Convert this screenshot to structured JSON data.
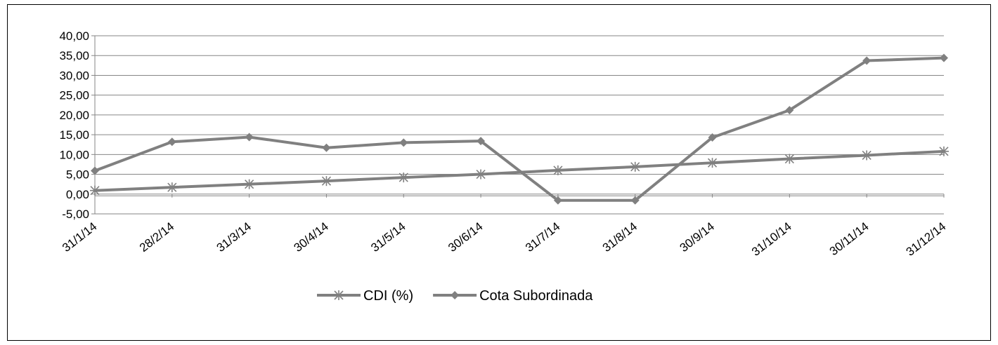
{
  "chart_data": {
    "type": "line",
    "categories": [
      "31/1/14",
      "28/2/14",
      "31/3/14",
      "30/4/14",
      "31/5/14",
      "30/6/14",
      "31/7/14",
      "31/8/14",
      "30/9/14",
      "31/10/14",
      "30/11/14",
      "31/12/14"
    ],
    "y_tick_labels": [
      "40,00",
      "35,00",
      "30,00",
      "25,00",
      "20,00",
      "15,00",
      "10,00",
      "5,00",
      "0,00",
      "-5,00"
    ],
    "ylim": [
      -5,
      40
    ],
    "grid": true,
    "legend_position": "bottom",
    "series": [
      {
        "name": "CDI (%)",
        "marker": "asterisk",
        "color": "#808080",
        "values": [
          0.9,
          1.7,
          2.5,
          3.3,
          4.2,
          5.0,
          6.0,
          6.9,
          7.9,
          8.9,
          9.8,
          10.8
        ]
      },
      {
        "name": "Cota Subordinada",
        "marker": "diamond",
        "color": "#808080",
        "values": [
          5.9,
          13.2,
          14.4,
          11.7,
          13.0,
          13.4,
          -1.6,
          -1.6,
          14.3,
          21.2,
          33.7,
          34.4
        ]
      }
    ]
  }
}
